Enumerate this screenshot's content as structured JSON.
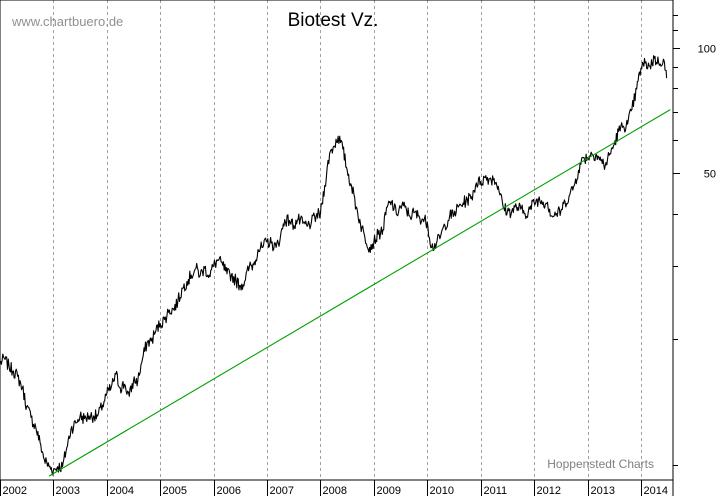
{
  "chart_data": {
    "type": "line",
    "title": "Biotest Vz.",
    "watermark": "www.chartbuero.de",
    "source": "Hoppenstedt Charts",
    "yscale": "log",
    "ylim": [
      9.2,
      130
    ],
    "xlim": [
      2002.0,
      2014.6
    ],
    "y_ticks": [
      {
        "value": 100,
        "label": "100"
      },
      {
        "value": 50,
        "label": "50"
      }
    ],
    "x_ticks": [
      "2002",
      "2003",
      "2004",
      "2005",
      "2006",
      "2007",
      "2008",
      "2009",
      "2010",
      "2011",
      "2012",
      "2013",
      "2014"
    ],
    "grid": "vertical dashed at each year",
    "colors": {
      "price": "#000000",
      "trendline": "#00a000",
      "grid": "#a0a0a0",
      "background": "#ffffff"
    },
    "series": [
      {
        "x": [
          2002.0,
          2002.08,
          2002.17,
          2002.25,
          2002.33,
          2002.42,
          2002.5,
          2002.58,
          2002.67,
          2002.75,
          2002.83,
          2002.92,
          2003.0,
          2003.08,
          2003.17,
          2003.25,
          2003.33,
          2003.42,
          2003.5,
          2003.58,
          2003.67,
          2003.75,
          2003.83,
          2003.92,
          2004.0,
          2004.08,
          2004.17,
          2004.25,
          2004.33,
          2004.42,
          2004.5,
          2004.58,
          2004.67,
          2004.75,
          2004.83,
          2004.92,
          2005.0,
          2005.08,
          2005.17,
          2005.25,
          2005.33,
          2005.42,
          2005.5,
          2005.58,
          2005.67,
          2005.75,
          2005.83,
          2005.92,
          2006.0,
          2006.08,
          2006.17,
          2006.25,
          2006.33,
          2006.42,
          2006.5,
          2006.58,
          2006.67,
          2006.75,
          2006.83,
          2006.92,
          2007.0,
          2007.08,
          2007.17,
          2007.25,
          2007.33,
          2007.42,
          2007.5,
          2007.58,
          2007.67,
          2007.75,
          2007.83,
          2007.92,
          2008.0,
          2008.08,
          2008.17,
          2008.25,
          2008.33,
          2008.42,
          2008.5,
          2008.58,
          2008.67,
          2008.75,
          2008.83,
          2008.92,
          2009.0,
          2009.08,
          2009.17,
          2009.25,
          2009.33,
          2009.42,
          2009.5,
          2009.58,
          2009.67,
          2009.75,
          2009.83,
          2009.92,
          2010.0,
          2010.08,
          2010.17,
          2010.25,
          2010.33,
          2010.42,
          2010.5,
          2010.58,
          2010.67,
          2010.75,
          2010.83,
          2010.92,
          2011.0,
          2011.08,
          2011.17,
          2011.25,
          2011.33,
          2011.42,
          2011.5,
          2011.58,
          2011.67,
          2011.75,
          2011.83,
          2011.92,
          2012.0,
          2012.08,
          2012.17,
          2012.25,
          2012.33,
          2012.42,
          2012.5,
          2012.58,
          2012.67,
          2012.75,
          2012.83,
          2012.92,
          2013.0,
          2013.08,
          2013.17,
          2013.25,
          2013.33,
          2013.42,
          2013.5,
          2013.58,
          2013.67,
          2013.75,
          2013.83,
          2013.92,
          2014.0,
          2014.08,
          2014.17,
          2014.25,
          2014.33,
          2014.42,
          2014.48
        ],
        "y": [
          17.5,
          18.0,
          17.2,
          16.8,
          16.3,
          15.3,
          13.8,
          13.0,
          12.3,
          11.3,
          10.3,
          9.9,
          9.7,
          9.9,
          9.9,
          11.0,
          12.2,
          12.6,
          13.1,
          12.9,
          13.1,
          13.1,
          13.1,
          13.9,
          14.8,
          15.3,
          16.5,
          15.3,
          15.6,
          14.6,
          15.9,
          15.9,
          18.0,
          19.6,
          19.8,
          21.0,
          21.8,
          22.3,
          23.5,
          23.6,
          24.7,
          26.5,
          27.5,
          28.5,
          29.6,
          28.5,
          29.6,
          28.5,
          30.0,
          31.0,
          30.1,
          28.7,
          28.5,
          27.6,
          26.9,
          27.5,
          29.9,
          30.2,
          32.8,
          33.2,
          34.3,
          34.0,
          33.2,
          35.2,
          38.7,
          38.5,
          37.5,
          38.7,
          37.9,
          37.3,
          38.1,
          39.5,
          40.0,
          46.7,
          55.7,
          58.0,
          61.3,
          57.1,
          50.8,
          46.7,
          41.5,
          37.8,
          35.2,
          33.2,
          34.3,
          35.7,
          36.6,
          41.5,
          42.6,
          40.0,
          41.5,
          41.5,
          39.5,
          40.2,
          39.5,
          38.7,
          38.2,
          33.2,
          33.9,
          35.4,
          37.5,
          39.5,
          39.8,
          41.5,
          42.4,
          43.2,
          43.9,
          47.4,
          47.7,
          48.8,
          48.5,
          48.5,
          46.5,
          41.5,
          40.5,
          40.5,
          41.5,
          41.0,
          40.0,
          41.0,
          42.6,
          43.2,
          42.6,
          42.6,
          39.5,
          40.0,
          40.5,
          42.6,
          44.5,
          46.7,
          50.8,
          54.5,
          54.5,
          55.7,
          55.4,
          53.6,
          52.1,
          55.7,
          58.6,
          63.0,
          64.8,
          65.5,
          71.0,
          79.6,
          89.3,
          91.8,
          90.3,
          94.3,
          92.0,
          93.8,
          84.5
        ]
      },
      {
        "name": "trendline",
        "x": [
          2002.92,
          2014.55
        ],
        "y": [
          9.4,
          71.0
        ]
      }
    ]
  }
}
